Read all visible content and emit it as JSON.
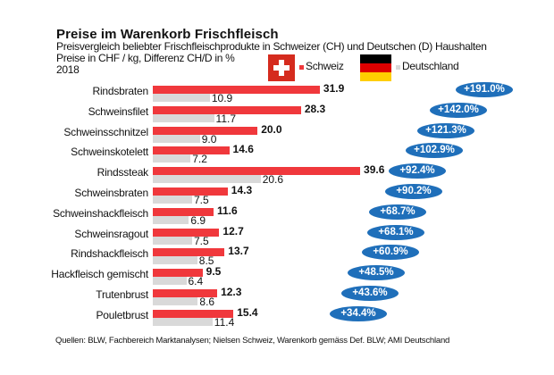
{
  "chart_data": {
    "type": "bar",
    "orientation": "horizontal",
    "title": "Preise im Warenkorb Frischfleisch",
    "subtitle_lines": [
      "Preisvergleich beliebter Frischfleischprodukte in Schweizer (CH) und Deutschen (D) Haushalten",
      "Preise in CHF / kg, Differenz CH/D in %",
      "2018"
    ],
    "categories": [
      "Rindsbraten",
      "Schweinsfilet",
      "Schweinsschnitzel",
      "Schweinskotelett",
      "Rindssteak",
      "Schweinsbraten",
      "Schweinshackfleisch",
      "Schweinsragout",
      "Rindshackfleisch",
      "Hackfleisch gemischt",
      "Trutenbrust",
      "Pouletbrust"
    ],
    "series": [
      {
        "name": "Schweiz",
        "color": "#f0383c",
        "values": [
          31.9,
          28.3,
          20.0,
          14.6,
          39.6,
          14.3,
          11.6,
          12.7,
          13.7,
          9.5,
          12.3,
          15.4
        ]
      },
      {
        "name": "Deutschland",
        "color": "#d9d9d9",
        "values": [
          10.9,
          11.7,
          9.0,
          7.2,
          20.6,
          7.5,
          6.9,
          7.5,
          8.5,
          6.4,
          8.6,
          11.4
        ]
      }
    ],
    "value_labels": {
      "Schweiz": [
        "31.9",
        "28.3",
        "20.0",
        "14.6",
        "39.6",
        "14.3",
        "11.6",
        "12.7",
        "13.7",
        "9.5",
        "12.3",
        "15.4"
      ],
      "Deutschland": [
        "10.9",
        "11.7",
        "9.0",
        "7.2",
        "20.6",
        "7.5",
        "6.9",
        "7.5",
        "8.5",
        "6.4",
        "8.6",
        "11.4"
      ]
    },
    "differences": [
      "+191.0%",
      "+142.0%",
      "+121.3%",
      "+102.9%",
      "+92.4%",
      "+90.2%",
      "+68.7%",
      "+68.1%",
      "+60.9%",
      "+48.5%",
      "+43.6%",
      "+34.4%"
    ],
    "difference_color": "#1f6fba",
    "xlabel": "",
    "ylabel": "",
    "xlim": [
      0,
      40
    ],
    "grid": false,
    "legend": {
      "position": "top-right",
      "entries": [
        "Schweiz",
        "Deutschland"
      ]
    },
    "source": "Quellen:  BLW, Fachbereich Marktanalysen;  Nielsen Schweiz, Warenkorb gemäss Def. BLW; AMI Deutschland"
  }
}
